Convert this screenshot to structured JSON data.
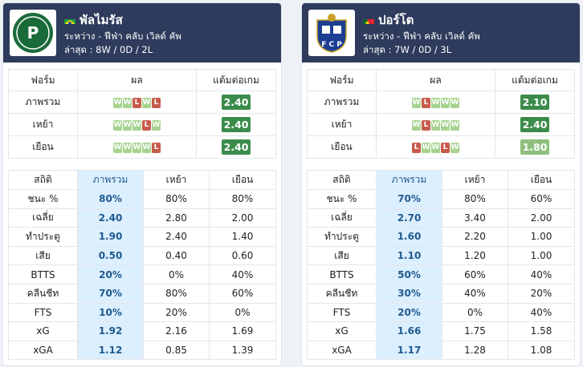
{
  "teams": [
    {
      "name": "พัลไมรัส",
      "flag": "brazil",
      "competition": "ระหว่าง - ฟีฟ่า คลับ เวิลด์ คัพ",
      "recent": "ล่าสุด : 8W / 0D / 2L",
      "logo_icon": "palmeiras-crest-icon",
      "form_headers": [
        "ฟอร์ม",
        "ผล",
        "แต้มต่อเกม"
      ],
      "form_rows": [
        {
          "label": "ภาพรวม",
          "results": [
            "W",
            "W",
            "L",
            "W",
            "L"
          ],
          "ppg": "2.40",
          "ppg_color": "#3b8b4a"
        },
        {
          "label": "เหย้า",
          "results": [
            "W",
            "W",
            "W",
            "L",
            "W"
          ],
          "ppg": "2.40",
          "ppg_color": "#3b8b4a"
        },
        {
          "label": "เยือน",
          "results": [
            "W",
            "W",
            "W",
            "W",
            "L"
          ],
          "ppg": "2.40",
          "ppg_color": "#3b8b4a"
        }
      ],
      "stats_headers": [
        "สถิติ",
        "ภาพรวม",
        "เหย้า",
        "เยือน"
      ],
      "stats_rows": [
        {
          "label": "ชนะ %",
          "overall": "80%",
          "home": "80%",
          "away": "80%"
        },
        {
          "label": "เฉลี่ย",
          "overall": "2.40",
          "home": "2.80",
          "away": "2.00"
        },
        {
          "label": "ทำประตู",
          "overall": "1.90",
          "home": "2.40",
          "away": "1.40"
        },
        {
          "label": "เสีย",
          "overall": "0.50",
          "home": "0.40",
          "away": "0.60"
        },
        {
          "label": "BTTS",
          "overall": "20%",
          "home": "0%",
          "away": "40%"
        },
        {
          "label": "คลีนชีท",
          "overall": "70%",
          "home": "80%",
          "away": "60%"
        },
        {
          "label": "FTS",
          "overall": "10%",
          "home": "20%",
          "away": "0%"
        },
        {
          "label": "xG",
          "overall": "1.92",
          "home": "2.16",
          "away": "1.69"
        },
        {
          "label": "xGA",
          "overall": "1.12",
          "home": "0.85",
          "away": "1.39"
        }
      ]
    },
    {
      "name": "ปอร์โต",
      "flag": "portugal",
      "competition": "ระหว่าง - ฟีฟ่า คลับ เวิลด์ คัพ",
      "recent": "ล่าสุด : 7W / 0D / 3L",
      "logo_icon": "porto-crest-icon",
      "form_headers": [
        "ฟอร์ม",
        "ผล",
        "แต้มต่อเกม"
      ],
      "form_rows": [
        {
          "label": "ภาพรวม",
          "results": [
            "W",
            "L",
            "W",
            "W",
            "W"
          ],
          "ppg": "2.10",
          "ppg_color": "#3b8b4a"
        },
        {
          "label": "เหย้า",
          "results": [
            "W",
            "L",
            "W",
            "W",
            "W"
          ],
          "ppg": "2.40",
          "ppg_color": "#3b8b4a"
        },
        {
          "label": "เยือน",
          "results": [
            "L",
            "W",
            "W",
            "L",
            "W"
          ],
          "ppg": "1.80",
          "ppg_color": "#8fbf7e"
        }
      ],
      "stats_headers": [
        "สถิติ",
        "ภาพรวม",
        "เหย้า",
        "เยือน"
      ],
      "stats_rows": [
        {
          "label": "ชนะ %",
          "overall": "70%",
          "home": "80%",
          "away": "60%"
        },
        {
          "label": "เฉลี่ย",
          "overall": "2.70",
          "home": "3.40",
          "away": "2.00"
        },
        {
          "label": "ทำประตู",
          "overall": "1.60",
          "home": "2.20",
          "away": "1.00"
        },
        {
          "label": "เสีย",
          "overall": "1.10",
          "home": "1.20",
          "away": "1.00"
        },
        {
          "label": "BTTS",
          "overall": "50%",
          "home": "60%",
          "away": "40%"
        },
        {
          "label": "คลีนชีท",
          "overall": "30%",
          "home": "40%",
          "away": "20%"
        },
        {
          "label": "FTS",
          "overall": "20%",
          "home": "0%",
          "away": "40%"
        },
        {
          "label": "xG",
          "overall": "1.66",
          "home": "1.75",
          "away": "1.58"
        },
        {
          "label": "xGA",
          "overall": "1.17",
          "home": "1.28",
          "away": "1.08"
        }
      ]
    }
  ]
}
